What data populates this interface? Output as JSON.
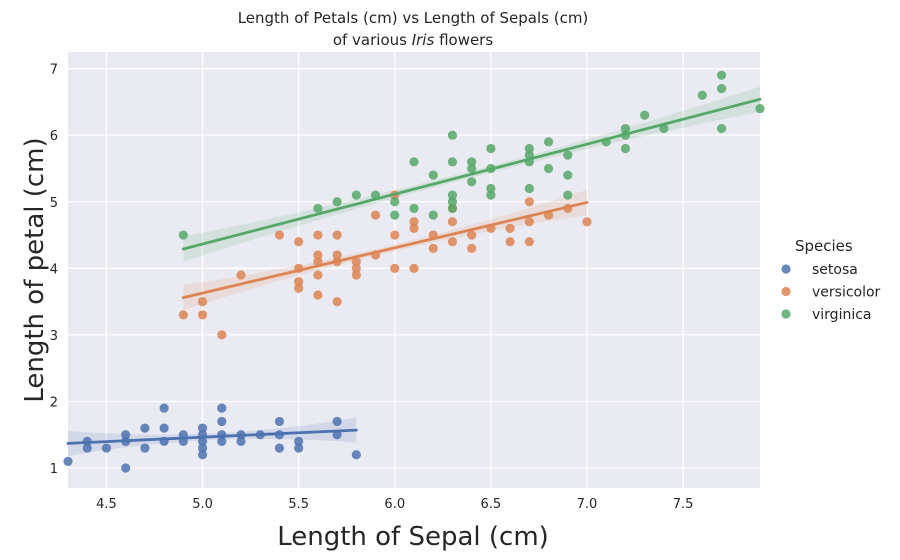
{
  "chart_data": {
    "type": "scatter",
    "title_line1": "Length of Petals (cm) vs Length of Sepals (cm)",
    "title_line2_prefix": "of various ",
    "title_line2_italic": "Iris",
    "title_line2_suffix": " flowers",
    "xlabel": "Length of Sepal (cm)",
    "ylabel": "Length of petal (cm)",
    "xlim": [
      4.3,
      7.9
    ],
    "ylim": [
      0.7,
      7.25
    ],
    "xticks": [
      4.5,
      5.0,
      5.5,
      6.0,
      6.5,
      7.0,
      7.5
    ],
    "xtick_labels": [
      "4.5",
      "5.0",
      "5.5",
      "6.0",
      "6.5",
      "7.0",
      "7.5"
    ],
    "yticks": [
      1,
      2,
      3,
      4,
      5,
      6,
      7
    ],
    "ytick_labels": [
      "1",
      "2",
      "3",
      "4",
      "5",
      "6",
      "7"
    ],
    "grid": true,
    "legend": {
      "title": "Species",
      "position": "right-outside"
    },
    "series": [
      {
        "name": "setosa",
        "color": "#4c72b0",
        "fit": {
          "x": [
            4.3,
            5.8
          ],
          "y": [
            1.37,
            1.57
          ]
        },
        "points": [
          [
            4.3,
            1.1
          ],
          [
            4.4,
            1.3
          ],
          [
            4.4,
            1.4
          ],
          [
            4.5,
            1.3
          ],
          [
            4.6,
            1.0
          ],
          [
            4.6,
            1.4
          ],
          [
            4.6,
            1.5
          ],
          [
            4.7,
            1.3
          ],
          [
            4.7,
            1.6
          ],
          [
            4.8,
            1.4
          ],
          [
            4.8,
            1.6
          ],
          [
            4.8,
            1.9
          ],
          [
            4.9,
            1.4
          ],
          [
            4.9,
            1.5
          ],
          [
            5.0,
            1.2
          ],
          [
            5.0,
            1.3
          ],
          [
            5.0,
            1.4
          ],
          [
            5.0,
            1.5
          ],
          [
            5.0,
            1.6
          ],
          [
            5.1,
            1.4
          ],
          [
            5.1,
            1.5
          ],
          [
            5.1,
            1.7
          ],
          [
            5.1,
            1.9
          ],
          [
            5.2,
            1.4
          ],
          [
            5.2,
            1.5
          ],
          [
            5.3,
            1.5
          ],
          [
            5.4,
            1.3
          ],
          [
            5.4,
            1.5
          ],
          [
            5.4,
            1.7
          ],
          [
            5.5,
            1.3
          ],
          [
            5.5,
            1.4
          ],
          [
            5.7,
            1.5
          ],
          [
            5.7,
            1.7
          ],
          [
            5.8,
            1.2
          ]
        ]
      },
      {
        "name": "versicolor",
        "color": "#dd8452",
        "fit": {
          "x": [
            4.9,
            7.0
          ],
          "y": [
            3.56,
            4.99
          ]
        },
        "points": [
          [
            4.9,
            3.3
          ],
          [
            5.0,
            3.3
          ],
          [
            5.0,
            3.5
          ],
          [
            5.1,
            3.0
          ],
          [
            5.2,
            3.9
          ],
          [
            5.4,
            4.5
          ],
          [
            5.5,
            3.7
          ],
          [
            5.5,
            3.8
          ],
          [
            5.5,
            4.0
          ],
          [
            5.5,
            4.4
          ],
          [
            5.6,
            3.6
          ],
          [
            5.6,
            3.9
          ],
          [
            5.6,
            4.1
          ],
          [
            5.6,
            4.2
          ],
          [
            5.6,
            4.5
          ],
          [
            5.7,
            3.5
          ],
          [
            5.7,
            4.1
          ],
          [
            5.7,
            4.2
          ],
          [
            5.7,
            4.5
          ],
          [
            5.8,
            3.9
          ],
          [
            5.8,
            4.0
          ],
          [
            5.8,
            4.1
          ],
          [
            5.9,
            4.2
          ],
          [
            5.9,
            4.8
          ],
          [
            6.0,
            4.0
          ],
          [
            6.0,
            4.5
          ],
          [
            6.0,
            5.1
          ],
          [
            6.1,
            4.0
          ],
          [
            6.1,
            4.6
          ],
          [
            6.1,
            4.7
          ],
          [
            6.2,
            4.3
          ],
          [
            6.2,
            4.5
          ],
          [
            6.3,
            4.4
          ],
          [
            6.3,
            4.7
          ],
          [
            6.3,
            4.9
          ],
          [
            6.4,
            4.3
          ],
          [
            6.4,
            4.5
          ],
          [
            6.5,
            4.6
          ],
          [
            6.6,
            4.4
          ],
          [
            6.6,
            4.6
          ],
          [
            6.7,
            4.4
          ],
          [
            6.7,
            4.7
          ],
          [
            6.7,
            5.0
          ],
          [
            6.8,
            4.8
          ],
          [
            6.9,
            4.9
          ],
          [
            7.0,
            4.7
          ]
        ]
      },
      {
        "name": "virginica",
        "color": "#55a868",
        "fit": {
          "x": [
            4.9,
            7.9
          ],
          "y": [
            4.29,
            6.54
          ]
        },
        "points": [
          [
            4.9,
            4.5
          ],
          [
            5.6,
            4.9
          ],
          [
            5.7,
            5.0
          ],
          [
            5.8,
            5.1
          ],
          [
            5.9,
            5.1
          ],
          [
            6.0,
            4.8
          ],
          [
            6.0,
            5.0
          ],
          [
            6.1,
            4.9
          ],
          [
            6.1,
            5.6
          ],
          [
            6.2,
            4.8
          ],
          [
            6.2,
            5.4
          ],
          [
            6.3,
            4.9
          ],
          [
            6.3,
            5.0
          ],
          [
            6.3,
            5.1
          ],
          [
            6.3,
            5.6
          ],
          [
            6.3,
            6.0
          ],
          [
            6.4,
            5.3
          ],
          [
            6.4,
            5.5
          ],
          [
            6.4,
            5.6
          ],
          [
            6.5,
            5.1
          ],
          [
            6.5,
            5.2
          ],
          [
            6.5,
            5.5
          ],
          [
            6.5,
            5.8
          ],
          [
            6.7,
            5.2
          ],
          [
            6.7,
            5.6
          ],
          [
            6.7,
            5.7
          ],
          [
            6.7,
            5.8
          ],
          [
            6.8,
            5.5
          ],
          [
            6.8,
            5.9
          ],
          [
            6.9,
            5.1
          ],
          [
            6.9,
            5.4
          ],
          [
            6.9,
            5.7
          ],
          [
            7.1,
            5.9
          ],
          [
            7.2,
            5.8
          ],
          [
            7.2,
            6.0
          ],
          [
            7.2,
            6.1
          ],
          [
            7.3,
            6.3
          ],
          [
            7.4,
            6.1
          ],
          [
            7.6,
            6.6
          ],
          [
            7.7,
            6.1
          ],
          [
            7.7,
            6.7
          ],
          [
            7.7,
            6.9
          ],
          [
            7.9,
            6.4
          ]
        ]
      }
    ]
  }
}
